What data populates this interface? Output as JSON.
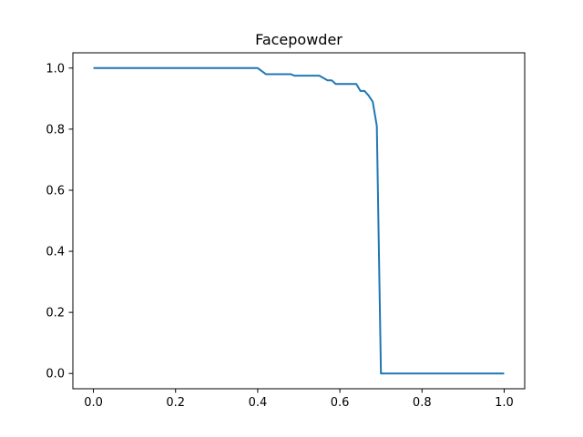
{
  "chart_data": {
    "type": "line",
    "title": "Facepowder",
    "xlabel": "",
    "ylabel": "",
    "xlim": [
      -0.05,
      1.05
    ],
    "ylim": [
      -0.05,
      1.05
    ],
    "grid": false,
    "x_ticks": [
      0.0,
      0.2,
      0.4,
      0.6,
      0.8,
      1.0
    ],
    "x_tick_labels": [
      "0.0",
      "0.2",
      "0.4",
      "0.6",
      "0.8",
      "1.0"
    ],
    "y_ticks": [
      0.0,
      0.2,
      0.4,
      0.6,
      0.8,
      1.0
    ],
    "y_tick_labels": [
      "0.0",
      "0.2",
      "0.4",
      "0.6",
      "0.8",
      "1.0"
    ],
    "series": [
      {
        "color": "#1f77b4",
        "x": [
          0.0,
          0.1,
          0.2,
          0.3,
          0.4,
          0.42,
          0.44,
          0.46,
          0.48,
          0.49,
          0.52,
          0.55,
          0.57,
          0.58,
          0.59,
          0.61,
          0.63,
          0.64,
          0.65,
          0.66,
          0.67,
          0.68,
          0.69,
          0.7,
          0.75,
          0.8,
          0.9,
          1.0
        ],
        "y": [
          1.0,
          1.0,
          1.0,
          1.0,
          1.0,
          0.98,
          0.98,
          0.98,
          0.98,
          0.975,
          0.975,
          0.975,
          0.96,
          0.96,
          0.948,
          0.948,
          0.948,
          0.948,
          0.925,
          0.925,
          0.91,
          0.89,
          0.81,
          0.0,
          0.0,
          0.0,
          0.0,
          0.0
        ]
      }
    ]
  }
}
